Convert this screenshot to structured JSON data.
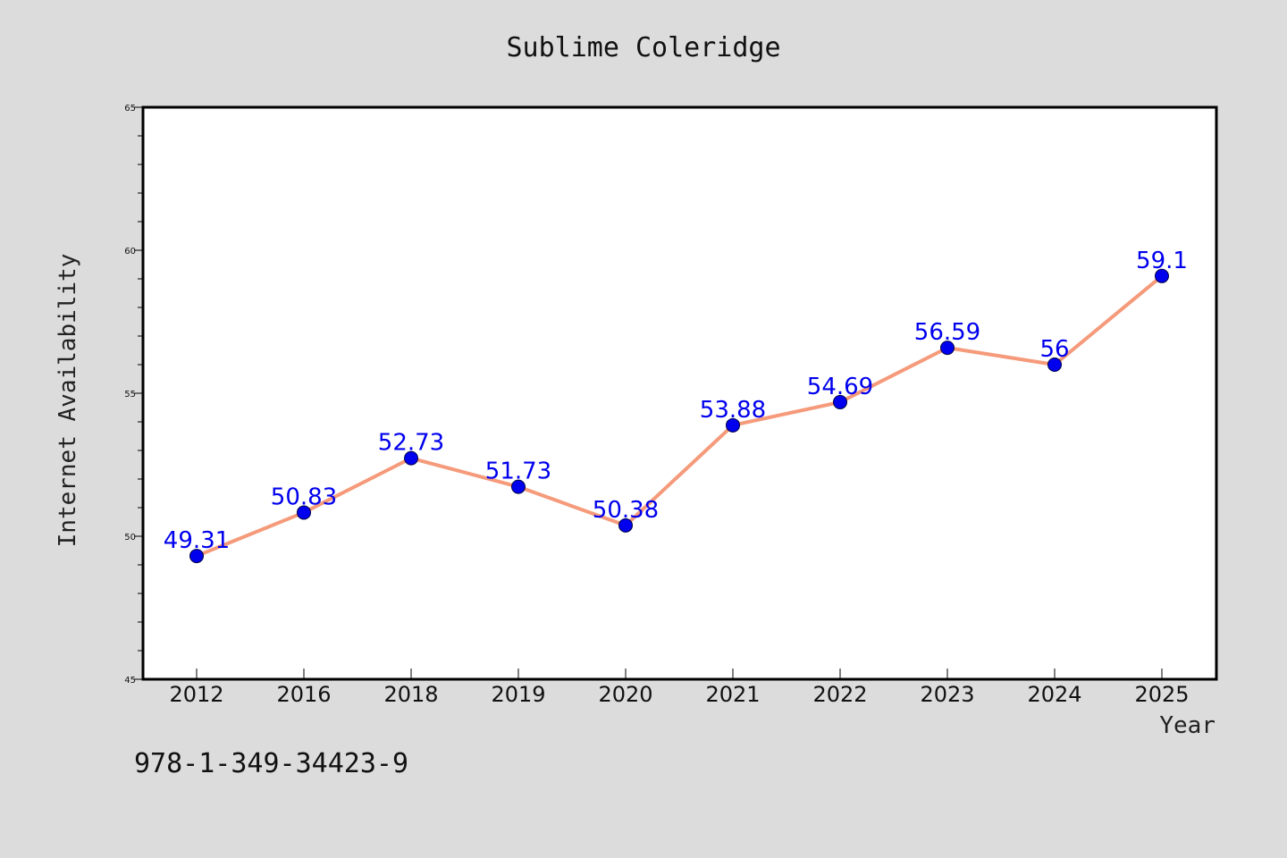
{
  "chart_data": {
    "type": "line",
    "title": "Sublime Coleridge",
    "xlabel": "Year",
    "ylabel": "Internet Availability",
    "categories": [
      "2012",
      "2016",
      "2018",
      "2019",
      "2020",
      "2021",
      "2022",
      "2023",
      "2024",
      "2025"
    ],
    "series": [
      {
        "values": [
          49.31,
          50.83,
          52.73,
          51.73,
          50.38,
          53.88,
          54.69,
          56.59,
          56,
          59.1
        ],
        "data_labels": [
          "49.31",
          "50.83",
          "52.73",
          "51.73",
          "50.38",
          "53.88",
          "54.69",
          "56.59",
          "56",
          "59.1"
        ],
        "line_color": "#f59a7a",
        "marker_color": "#0000ee"
      }
    ],
    "ylim": [
      45,
      65
    ],
    "yticks": [
      "45",
      "50",
      "55",
      "60",
      "65"
    ],
    "grid": false,
    "legend": "none"
  },
  "footer_text": "978-1-349-34423-9",
  "colors": {
    "background": "#dcdcdc",
    "plot_area": "#ffffff",
    "line": "#f59a7a",
    "marker": "#0000ee",
    "data_label": "#0000ee"
  }
}
